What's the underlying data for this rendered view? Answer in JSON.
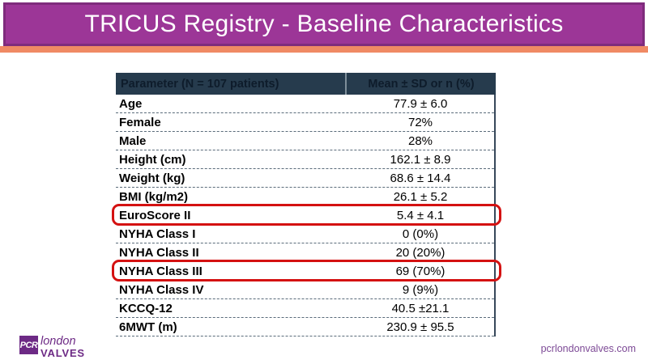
{
  "slide": {
    "title": "TRICUS Registry - Baseline Characteristics",
    "footer_url": "pcrlondonvalves.com",
    "logo": {
      "abbrev": "PCR",
      "line1": "london",
      "line2": "VALVES"
    }
  },
  "colors": {
    "banner_fill": "#9c3697",
    "banner_border": "#7f2c7c",
    "stripe_orange": "#f08a64",
    "table_header_bg": "#263b4d",
    "table_header_text": "#0e1c2b",
    "highlight_red": "#d41111",
    "logo_purple": "#6d2a85",
    "footer_purple": "#7d4a96"
  },
  "table": {
    "headers": [
      "Parameter (N = 107 patients)",
      "Mean ± SD or n (%)"
    ],
    "rows": [
      {
        "label": "Age",
        "value": "77.9 ± 6.0",
        "highlighted": false
      },
      {
        "label": "Female",
        "value": "72%",
        "highlighted": false
      },
      {
        "label": "Male",
        "value": "28%",
        "highlighted": false
      },
      {
        "label": "Height (cm)",
        "value": "162.1 ± 8.9",
        "highlighted": false
      },
      {
        "label": "Weight (kg)",
        "value": "68.6 ± 14.4",
        "highlighted": false
      },
      {
        "label": "BMI (kg/m2)",
        "value": "26.1 ± 5.2",
        "highlighted": false
      },
      {
        "label": "EuroScore II",
        "value": "5.4 ± 4.1",
        "highlighted": true
      },
      {
        "label": "NYHA Class I",
        "value": "0 (0%)",
        "highlighted": false
      },
      {
        "label": "NYHA Class II",
        "value": "20 (20%)",
        "highlighted": false
      },
      {
        "label": "NYHA Class III",
        "value": "69 (70%)",
        "highlighted": true
      },
      {
        "label": "NYHA Class IV",
        "value": "9 (9%)",
        "highlighted": false
      },
      {
        "label": "KCCQ-12",
        "value": "40.5 ±21.1",
        "highlighted": false
      },
      {
        "label": "6MWT (m)",
        "value": "230.9 ± 95.5",
        "highlighted": false
      }
    ]
  }
}
